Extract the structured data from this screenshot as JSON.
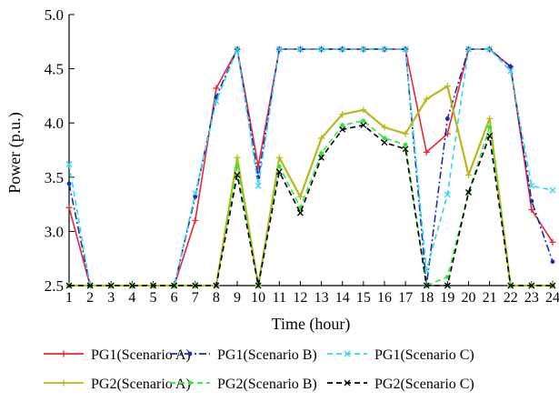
{
  "chart_data": {
    "type": "line",
    "xlabel": "Time (hour)",
    "ylabel": "Power (p.u.)",
    "x": [
      1,
      2,
      3,
      4,
      5,
      6,
      7,
      8,
      9,
      10,
      11,
      12,
      13,
      14,
      15,
      16,
      17,
      18,
      19,
      20,
      21,
      22,
      23,
      24
    ],
    "xticks": [
      "1",
      "2",
      "3",
      "4",
      "5",
      "6",
      "7",
      "8",
      "9",
      "10",
      "11",
      "12",
      "13",
      "14",
      "15",
      "16",
      "17",
      "18",
      "19",
      "20",
      "21",
      "22",
      "23",
      "24"
    ],
    "yticks": [
      "2.5",
      "3.0",
      "3.5",
      "4.0",
      "4.5",
      "5.0"
    ],
    "ylim": [
      2.5,
      5.0
    ],
    "xlim": [
      1,
      24
    ],
    "grid": false,
    "legend_position": "bottom",
    "series": [
      {
        "name": "PG1(Scenario A)",
        "color": "#e8282d",
        "dash": "solid",
        "marker": "plus",
        "values": [
          3.22,
          2.5,
          2.5,
          2.5,
          2.5,
          2.5,
          3.1,
          4.32,
          4.68,
          3.6,
          4.68,
          4.68,
          4.68,
          4.68,
          4.68,
          4.68,
          4.68,
          3.73,
          3.9,
          4.68,
          4.68,
          4.52,
          3.2,
          2.9
        ]
      },
      {
        "name": "PG1(Scenario B)",
        "color": "#1a2bbd",
        "dash": "dashdot",
        "marker": "dot",
        "values": [
          3.44,
          2.5,
          2.5,
          2.5,
          2.5,
          2.5,
          3.32,
          4.24,
          4.68,
          3.5,
          4.68,
          4.68,
          4.68,
          4.68,
          4.68,
          4.68,
          4.68,
          2.5,
          4.04,
          4.68,
          4.68,
          4.52,
          3.28,
          2.72
        ]
      },
      {
        "name": "PG1(Scenario C)",
        "color": "#33d6f0",
        "dash": "dash",
        "marker": "x",
        "values": [
          3.62,
          2.5,
          2.5,
          2.5,
          2.5,
          2.5,
          3.35,
          4.2,
          4.68,
          3.42,
          4.68,
          4.68,
          4.68,
          4.68,
          4.68,
          4.68,
          4.68,
          2.64,
          3.34,
          4.68,
          4.68,
          4.48,
          3.42,
          3.38
        ]
      },
      {
        "name": "PG2(Scenario A)",
        "color": "#b8b81c",
        "dash": "solid",
        "marker": "plus",
        "values": [
          2.5,
          2.5,
          2.5,
          2.5,
          2.5,
          2.5,
          2.5,
          2.5,
          3.68,
          2.5,
          3.68,
          3.32,
          3.86,
          4.08,
          4.12,
          3.96,
          3.9,
          4.22,
          4.34,
          3.52,
          4.04,
          2.5,
          2.5,
          2.5
        ]
      },
      {
        "name": "PG2(Scenario B)",
        "color": "#2ce83a",
        "dash": "dash",
        "marker": "dot",
        "values": [
          2.5,
          2.5,
          2.5,
          2.5,
          2.5,
          2.5,
          2.5,
          2.5,
          3.6,
          2.5,
          3.6,
          3.22,
          3.72,
          3.98,
          4.02,
          3.86,
          3.8,
          2.5,
          2.58,
          3.36,
          3.96,
          2.5,
          2.5,
          2.5
        ]
      },
      {
        "name": "PG2(Scenario C)",
        "color": "#000000",
        "dash": "dash",
        "marker": "x",
        "values": [
          2.5,
          2.5,
          2.5,
          2.5,
          2.5,
          2.5,
          2.5,
          2.5,
          3.52,
          2.5,
          3.55,
          3.17,
          3.68,
          3.94,
          3.98,
          3.82,
          3.76,
          2.5,
          2.5,
          3.36,
          3.88,
          2.5,
          2.5,
          2.5
        ]
      }
    ]
  }
}
